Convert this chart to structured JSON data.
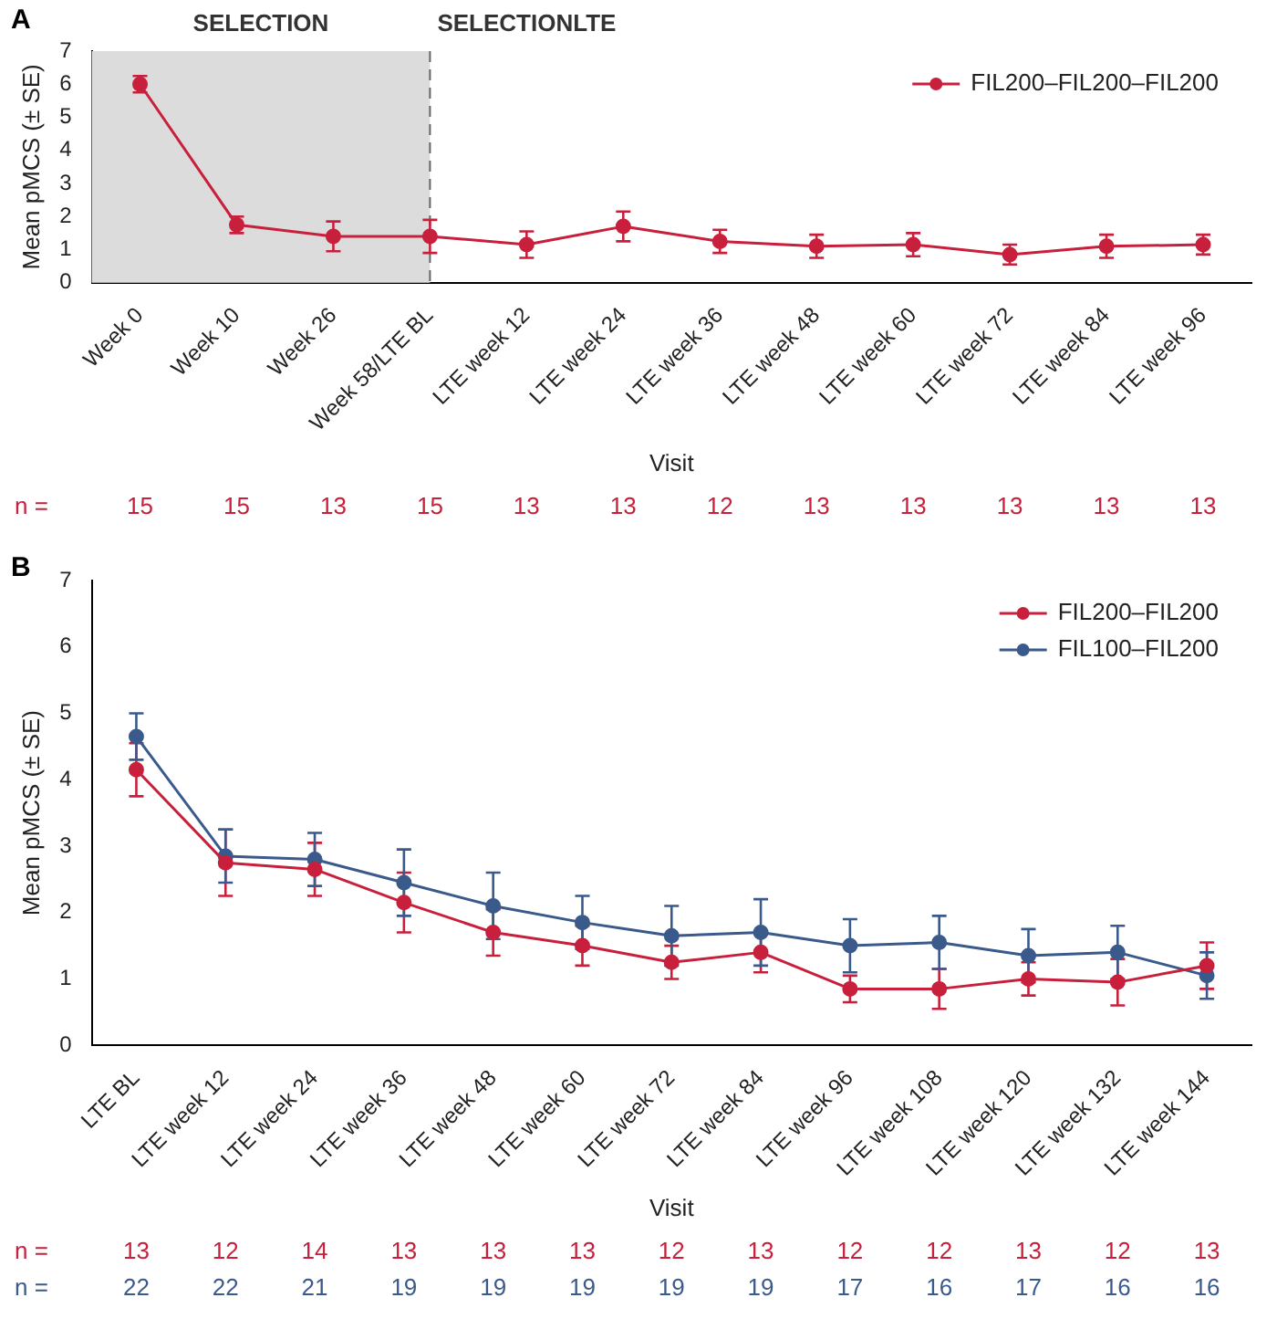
{
  "chart_data": [
    {
      "type": "line",
      "title": "A",
      "xlabel": "Visit",
      "ylabel": "Mean pMCS (± SE)",
      "categories": [
        "Week 0",
        "Week 10",
        "Week 26",
        "Week 58/LTE BL",
        "LTE week 12",
        "LTE week 24",
        "LTE week 36",
        "LTE week 48",
        "LTE week 60",
        "LTE week 72",
        "LTE week 84",
        "LTE week 96"
      ],
      "series": [
        {
          "name": "FIL200–FIL200–FIL200",
          "color": "#c8203c",
          "values": [
            6.0,
            1.75,
            1.4,
            1.4,
            1.15,
            1.7,
            1.25,
            1.1,
            1.15,
            0.85,
            1.1,
            1.15
          ],
          "errors": [
            0.25,
            0.25,
            0.45,
            0.5,
            0.4,
            0.45,
            0.35,
            0.35,
            0.35,
            0.3,
            0.35,
            0.3
          ]
        }
      ],
      "ylim": [
        0,
        7
      ],
      "yticks": [
        0,
        1,
        2,
        3,
        4,
        5,
        6,
        7
      ],
      "grid": false,
      "legend": "top right",
      "marker": "circle",
      "bands": [
        {
          "axis": "x",
          "from": "Week 0",
          "to": "Week 58/LTE BL",
          "label": "SELECTION",
          "color": "#dcdcdc"
        }
      ],
      "ref_lines": [
        {
          "axis": "x",
          "value": "Week 58/LTE BL",
          "label": "SELECTIONLTE",
          "line_style": "dashed",
          "color": "#666666"
        }
      ],
      "annotations": [
        "n =",
        "15",
        "15",
        "13",
        "15",
        "13",
        "13",
        "12",
        "13",
        "13",
        "13",
        "13",
        "13"
      ]
    },
    {
      "type": "line",
      "title": "B",
      "xlabel": "Visit",
      "ylabel": "Mean pMCS (± SE)",
      "categories": [
        "LTE BL",
        "LTE week 12",
        "LTE week 24",
        "LTE week 36",
        "LTE week 48",
        "LTE week 60",
        "LTE week 72",
        "LTE week 84",
        "LTE week 96",
        "LTE week 108",
        "LTE week 120",
        "LTE week 132",
        "LTE week 144"
      ],
      "series": [
        {
          "name": "FIL200–FIL200",
          "color": "#c8203c",
          "values": [
            4.15,
            2.75,
            2.65,
            2.15,
            1.7,
            1.5,
            1.25,
            1.4,
            0.85,
            0.85,
            1.0,
            0.95,
            1.2
          ],
          "errors": [
            0.4,
            0.5,
            0.4,
            0.45,
            0.35,
            0.3,
            0.25,
            0.3,
            0.2,
            0.3,
            0.25,
            0.35,
            0.35
          ]
        },
        {
          "name": "FIL100–FIL200",
          "color": "#3a5a8c",
          "values": [
            4.65,
            2.85,
            2.8,
            2.45,
            2.1,
            1.85,
            1.65,
            1.7,
            1.5,
            1.55,
            1.35,
            1.4,
            1.05
          ],
          "errors": [
            0.35,
            0.4,
            0.4,
            0.5,
            0.5,
            0.4,
            0.45,
            0.5,
            0.4,
            0.4,
            0.4,
            0.4,
            0.35
          ]
        }
      ],
      "ylim": [
        0,
        7
      ],
      "yticks": [
        0,
        1,
        2,
        3,
        4,
        5,
        6,
        7
      ],
      "grid": false,
      "legend": "top right",
      "marker": "circle",
      "annotations": [
        "n =",
        "13",
        "12",
        "14",
        "13",
        "13",
        "13",
        "12",
        "13",
        "12",
        "12",
        "13",
        "12",
        "13",
        "n =",
        "22",
        "22",
        "21",
        "19",
        "19",
        "19",
        "19",
        "19",
        "17",
        "16",
        "17",
        "16",
        "16"
      ]
    }
  ]
}
